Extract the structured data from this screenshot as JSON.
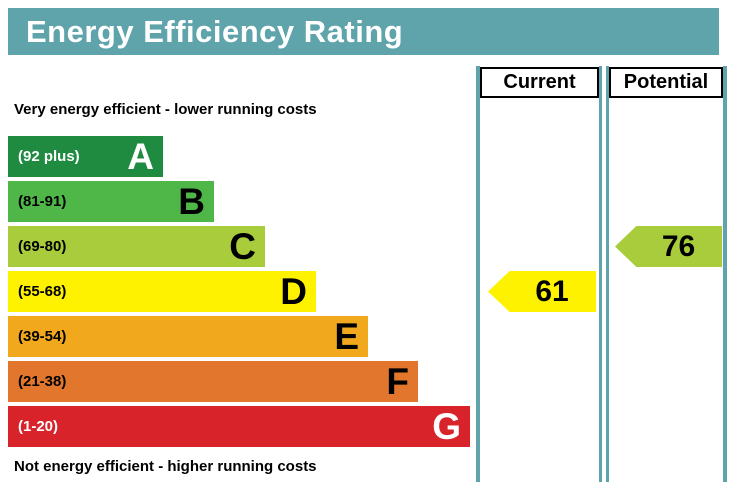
{
  "title": "Energy Efficiency Rating",
  "columns": [
    {
      "label": "Current"
    },
    {
      "label": "Potential"
    }
  ],
  "notes": {
    "top": "Very energy efficient - lower running costs",
    "bottom": "Not energy efficient - higher running costs"
  },
  "colors": {
    "teal": "#5fa3ab",
    "text_on_title": "#ffffff"
  },
  "chart_data": {
    "type": "bar",
    "title": "Energy Efficiency Rating",
    "bands": [
      {
        "letter": "A",
        "range": "(92 plus)",
        "min": 92,
        "max": 100,
        "color": "#1f8b41",
        "text_color": "#ffffff"
      },
      {
        "letter": "B",
        "range": "(81-91)",
        "min": 81,
        "max": 91,
        "color": "#4eb748",
        "text_color": "#000000"
      },
      {
        "letter": "C",
        "range": "(69-80)",
        "min": 69,
        "max": 80,
        "color": "#a8cc3b",
        "text_color": "#000000"
      },
      {
        "letter": "D",
        "range": "(55-68)",
        "min": 55,
        "max": 68,
        "color": "#fef200",
        "text_color": "#000000"
      },
      {
        "letter": "E",
        "range": "(39-54)",
        "min": 39,
        "max": 54,
        "color": "#f2a81d",
        "text_color": "#000000"
      },
      {
        "letter": "F",
        "range": "(21-38)",
        "min": 21,
        "max": 38,
        "color": "#e2762c",
        "text_color": "#000000"
      },
      {
        "letter": "G",
        "range": "(1-20)",
        "min": 1,
        "max": 20,
        "color": "#d8232a",
        "text_color": "#ffffff"
      }
    ],
    "current": {
      "value": 61,
      "band": "D",
      "color": "#fef200"
    },
    "potential": {
      "value": 76,
      "band": "C",
      "color": "#a8cc3b"
    }
  }
}
